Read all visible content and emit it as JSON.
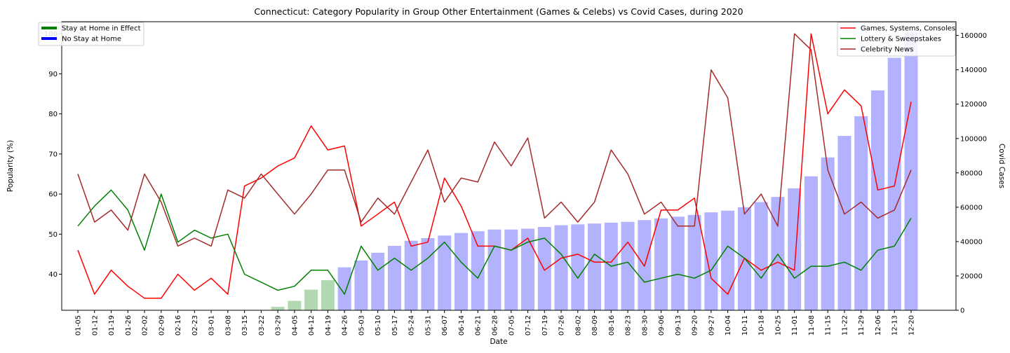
{
  "chart_data": {
    "type": "bar+line",
    "title": "Connecticut: Category Popularity in Group Other Entertainment (Games & Celebs) vs Covid Cases, during 2020",
    "xlabel": "Date",
    "ylabel": "Popularity (%)",
    "y2label": "Covid Cases",
    "categories": [
      "01-05",
      "01-12",
      "01-19",
      "01-26",
      "02-02",
      "02-09",
      "02-16",
      "02-23",
      "03-01",
      "03-08",
      "03-15",
      "03-22",
      "03-29",
      "04-05",
      "04-12",
      "04-19",
      "04-26",
      "05-03",
      "05-10",
      "05-17",
      "05-24",
      "05-31",
      "06-07",
      "06-14",
      "06-21",
      "06-28",
      "07-05",
      "07-12",
      "07-19",
      "07-26",
      "08-02",
      "08-09",
      "08-16",
      "08-23",
      "08-30",
      "09-06",
      "09-13",
      "09-20",
      "09-27",
      "10-04",
      "10-11",
      "10-18",
      "10-25",
      "11-01",
      "11-08",
      "11-15",
      "11-22",
      "11-29",
      "12-06",
      "12-13",
      "12-20"
    ],
    "ylim": [
      31,
      103
    ],
    "y2lim": [
      0,
      168000
    ],
    "yticks": [
      40,
      50,
      60,
      70,
      80,
      90,
      100
    ],
    "y2ticks": [
      0,
      20000,
      40000,
      60000,
      80000,
      100000,
      120000,
      140000,
      160000
    ],
    "grid": false,
    "legend_left": [
      {
        "label": "Stay at Home in Effect",
        "color": "#008000"
      },
      {
        "label": "No Stay at Home",
        "color": "#0000ff"
      }
    ],
    "bars": {
      "values": [
        0,
        0,
        0,
        0,
        0,
        0,
        0,
        0,
        0,
        0,
        0,
        0,
        2000,
        5500,
        12000,
        17500,
        25000,
        29000,
        33500,
        37500,
        40500,
        42000,
        43500,
        45000,
        46000,
        47000,
        47000,
        47500,
        48500,
        49500,
        50000,
        50500,
        51000,
        51500,
        52500,
        53500,
        54500,
        55500,
        57000,
        58000,
        60000,
        63000,
        66000,
        71000,
        78000,
        89000,
        101500,
        113000,
        128000,
        147000,
        162000
      ],
      "stay_at_home": [
        false,
        false,
        false,
        false,
        false,
        false,
        false,
        false,
        false,
        false,
        false,
        false,
        true,
        true,
        true,
        true,
        false,
        false,
        false,
        false,
        false,
        false,
        false,
        false,
        false,
        false,
        false,
        false,
        false,
        false,
        false,
        false,
        false,
        false,
        false,
        false,
        false,
        false,
        false,
        false,
        false,
        false,
        false,
        false,
        false,
        false,
        false,
        false,
        false,
        false,
        false
      ],
      "color_stay": "#b2d8b2",
      "color_no_stay": "#b2b2ff"
    },
    "series": [
      {
        "name": "Games, Systems, Consoles",
        "color": "#ff0000",
        "values": [
          46,
          35,
          41,
          37,
          34,
          34,
          40,
          36,
          39,
          35,
          62,
          64,
          67,
          69,
          77,
          71,
          72,
          52,
          55,
          58,
          47,
          48,
          64,
          57,
          47,
          47,
          46,
          49,
          41,
          44,
          45,
          43,
          43,
          48,
          42,
          56,
          56,
          59,
          39,
          35,
          44,
          41,
          43,
          41,
          100,
          80,
          86,
          82,
          61,
          62,
          83
        ]
      },
      {
        "name": "Lottery & Sweepstakes",
        "color": "#008000",
        "values": [
          52,
          57,
          61,
          56,
          46,
          60,
          48,
          51,
          49,
          50,
          40,
          38,
          36,
          37,
          41,
          41,
          35,
          47,
          41,
          44,
          41,
          44,
          48,
          43,
          39,
          47,
          46,
          48,
          49,
          45,
          39,
          45,
          42,
          43,
          38,
          39,
          40,
          39,
          41,
          47,
          44,
          39,
          45,
          39,
          42,
          42,
          43,
          41,
          46,
          47,
          54
        ]
      },
      {
        "name": "Celebrity News",
        "color": "#a52a2a",
        "values": [
          65,
          53,
          56,
          51,
          65,
          58,
          47,
          49,
          47,
          61,
          59,
          65,
          60,
          55,
          60,
          66,
          66,
          53,
          59,
          55,
          63,
          71,
          58,
          64,
          63,
          73,
          67,
          74,
          54,
          58,
          53,
          58,
          71,
          65,
          55,
          58,
          52,
          52,
          91,
          84,
          55,
          60,
          52,
          100,
          96,
          66,
          55,
          58,
          54,
          56,
          66
        ]
      }
    ]
  }
}
